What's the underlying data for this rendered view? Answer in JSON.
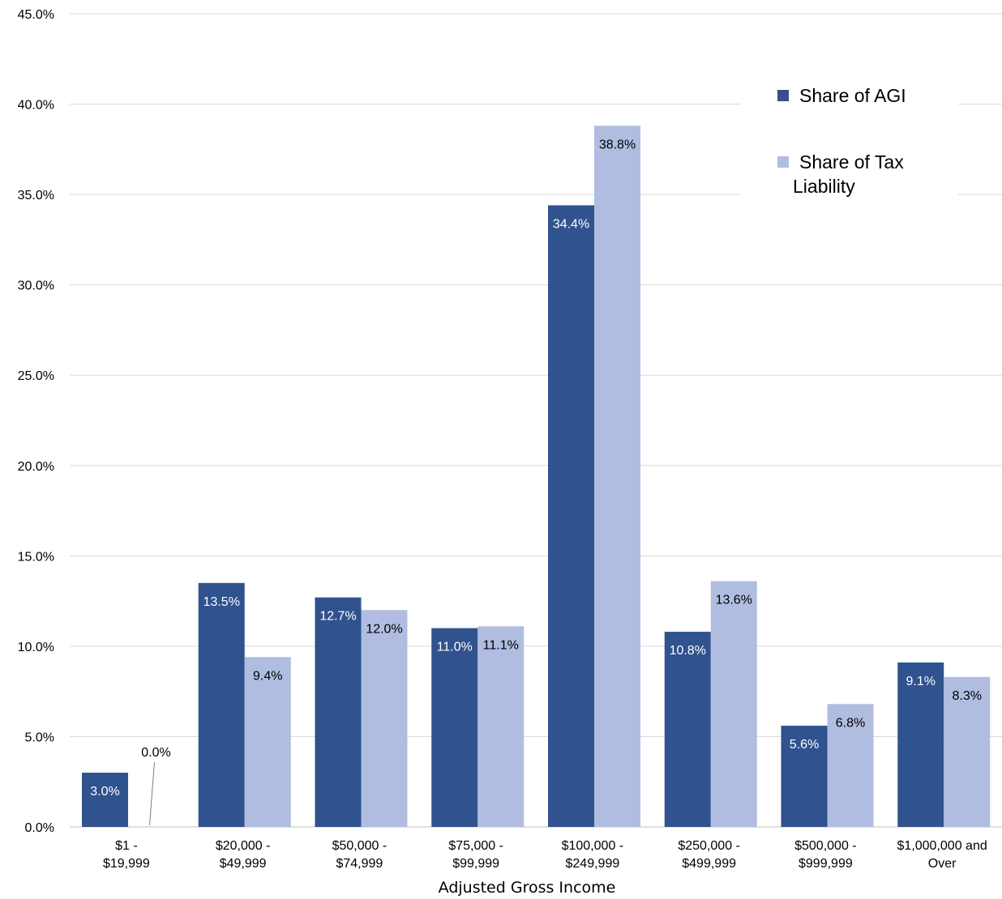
{
  "chart_data": {
    "type": "bar",
    "categories": [
      [
        "$1      -",
        "$19,999"
      ],
      [
        "$20,000 -",
        "$49,999"
      ],
      [
        "$50,000 -",
        "$74,999"
      ],
      [
        "$75,000 -",
        "$99,999"
      ],
      [
        "$100,000 -",
        "$249,999"
      ],
      [
        "$250,000 -",
        "$499,999"
      ],
      [
        "$500,000 -",
        "$999,999"
      ],
      [
        "$1,000,000 and",
        "Over"
      ]
    ],
    "series": [
      {
        "name": "Share of AGI",
        "color": "#30528e",
        "label_color": "#ffffff",
        "values": [
          3.0,
          13.5,
          12.7,
          11.0,
          34.4,
          10.8,
          5.6,
          9.1
        ],
        "labels": [
          "3.0%",
          "13.5%",
          "12.7%",
          "11.0%",
          "34.4%",
          "10.8%",
          "5.6%",
          "9.1%"
        ]
      },
      {
        "name": "Share of Tax Liability",
        "legend_lines": [
          "Share of Tax",
          "Liability"
        ],
        "color": "#b0bde0",
        "label_color": "#000000",
        "values": [
          0.0,
          9.4,
          12.0,
          11.1,
          38.8,
          13.6,
          6.8,
          8.3
        ],
        "labels": [
          "0.0%",
          "9.4%",
          "12.0%",
          "11.1%",
          "38.8%",
          "13.6%",
          "6.8%",
          "8.3%"
        ]
      }
    ],
    "xlabel": "Adjusted Gross Income",
    "ylabel": "",
    "ylim": [
      0,
      45
    ],
    "yticks": [
      0,
      5,
      10,
      15,
      20,
      25,
      30,
      35,
      40,
      45
    ],
    "ytick_labels": [
      "0.0%",
      "5.0%",
      "10.0%",
      "15.0%",
      "20.0%",
      "25.0%",
      "30.0%",
      "35.0%",
      "40.0%",
      "45.0%"
    ],
    "grid": true,
    "legend": "top-right"
  }
}
